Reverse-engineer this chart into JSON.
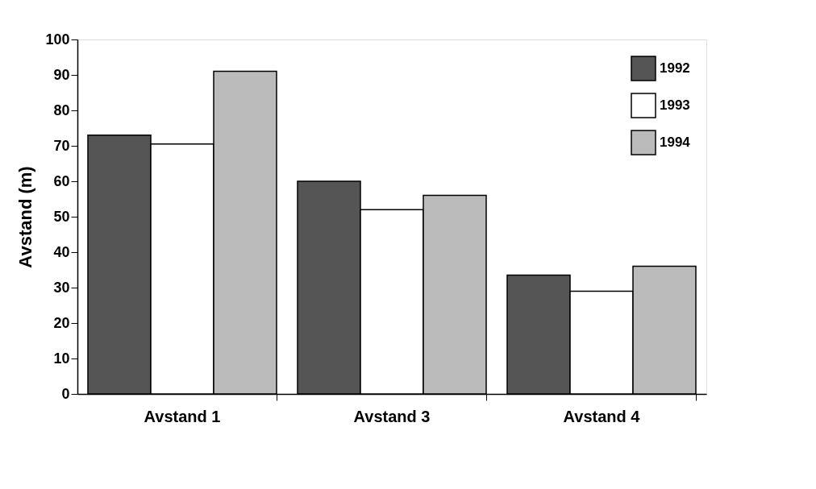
{
  "chart_data": {
    "type": "bar",
    "ylabel": "Avstand (m)",
    "categories": [
      "Avstand 1",
      "Avstand 3",
      "Avstand 4"
    ],
    "series": [
      {
        "name": "1992",
        "color": "#555555",
        "values": [
          73,
          60,
          33.5
        ]
      },
      {
        "name": "1993",
        "color": "#ffffff",
        "values": [
          70.5,
          52,
          29
        ]
      },
      {
        "name": "1994",
        "color": "#bbbbbb",
        "values": [
          91,
          56,
          36
        ]
      }
    ],
    "ylim": [
      0,
      100
    ],
    "yticks": [
      0,
      10,
      20,
      30,
      40,
      50,
      60,
      70,
      80,
      90,
      100
    ],
    "grid": false,
    "legend": "top right"
  }
}
